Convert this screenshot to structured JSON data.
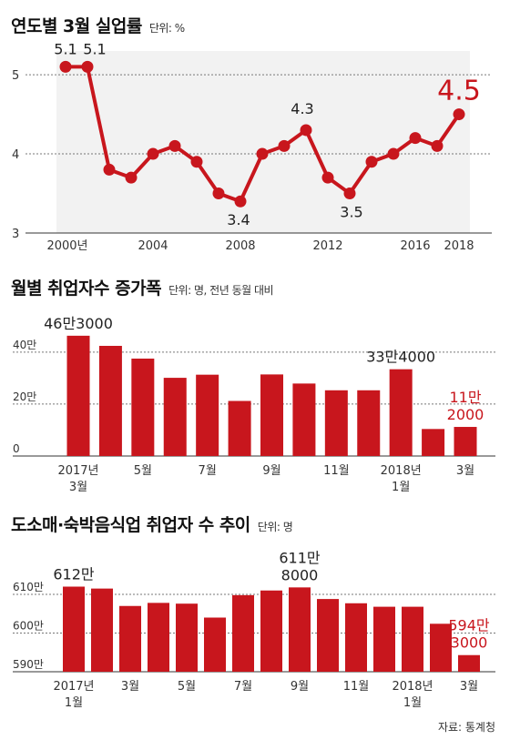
{
  "chart_data": [
    {
      "type": "line",
      "title": "연도별 3월 실업률",
      "unit": "단위: %",
      "x_tick_labels": [
        "2000년",
        "2004",
        "2008",
        "2012",
        "2016",
        "2018"
      ],
      "x": [
        2000,
        2001,
        2002,
        2003,
        2004,
        2005,
        2006,
        2007,
        2008,
        2009,
        2010,
        2011,
        2012,
        2013,
        2014,
        2015,
        2016,
        2017,
        2018
      ],
      "values": [
        5.1,
        5.1,
        3.8,
        3.7,
        4.0,
        4.1,
        3.9,
        3.5,
        3.4,
        4.0,
        4.1,
        4.3,
        3.7,
        3.5,
        3.9,
        4.0,
        4.2,
        4.1,
        4.5
      ],
      "data_labels": [
        {
          "x": 2000,
          "text": "5.1"
        },
        {
          "x": 2001,
          "text": "5.1"
        },
        {
          "x": 2008,
          "text": "3.4"
        },
        {
          "x": 2011,
          "text": "4.3"
        },
        {
          "x": 2013,
          "text": "3.5"
        },
        {
          "x": 2018,
          "text": "4.5",
          "highlight": true
        }
      ],
      "y_ticks": [
        "3",
        "4",
        "5"
      ],
      "ylim": [
        3,
        5.3
      ],
      "grid": true,
      "line_color": "#c8161d",
      "highlight_color": "#c8161d"
    },
    {
      "type": "bar",
      "title": "월별 취업자수 증가폭",
      "unit": "단위: 명, 전년 동월 대비",
      "categories": [
        "2017년 3월",
        "4월",
        "5월",
        "6월",
        "7월",
        "8월",
        "9월",
        "10월",
        "11월",
        "12월",
        "2018년 1월",
        "2월",
        "3월"
      ],
      "values": [
        463000,
        424000,
        375000,
        301000,
        313000,
        212000,
        314000,
        279000,
        253000,
        253000,
        334000,
        104000,
        112000
      ],
      "x_tick_labels": [
        {
          "index": 0,
          "lines": [
            "2017년",
            "3월"
          ]
        },
        {
          "index": 2,
          "lines": [
            "5월"
          ]
        },
        {
          "index": 4,
          "lines": [
            "7월"
          ]
        },
        {
          "index": 6,
          "lines": [
            "9월"
          ]
        },
        {
          "index": 8,
          "lines": [
            "11월"
          ]
        },
        {
          "index": 10,
          "lines": [
            "2018년",
            "1월"
          ]
        },
        {
          "index": 12,
          "lines": [
            "3월"
          ]
        }
      ],
      "data_labels": [
        {
          "index": 0,
          "lines": [
            "46만3000"
          ]
        },
        {
          "index": 10,
          "lines": [
            "33만4000"
          ]
        },
        {
          "index": 12,
          "lines": [
            "11만",
            "2000"
          ],
          "highlight": true
        }
      ],
      "y_ticks": [
        {
          "value": 0,
          "label": "0"
        },
        {
          "value": 200000,
          "label": "20만"
        },
        {
          "value": 400000,
          "label": "40만"
        }
      ],
      "ylim": [
        0,
        480000
      ],
      "grid": true,
      "bar_color": "#c8161d",
      "highlight_color": "#c8161d"
    },
    {
      "type": "bar",
      "title": "도소매·숙박음식업 취업자 수 추이",
      "unit": "단위: 명",
      "categories": [
        "2017년 1월",
        "2월",
        "3월",
        "4월",
        "5월",
        "6월",
        "7월",
        "8월",
        "9월",
        "10월",
        "11월",
        "12월",
        "2018년 1월",
        "2월",
        "3월"
      ],
      "values": [
        6120000,
        6115000,
        6070000,
        6078000,
        6076000,
        6040000,
        6098000,
        6110000,
        6118000,
        6088000,
        6077000,
        6068000,
        6068000,
        6024000,
        5943000
      ],
      "x_tick_labels": [
        {
          "index": 0,
          "lines": [
            "2017년",
            "1월"
          ]
        },
        {
          "index": 2,
          "lines": [
            "3월"
          ]
        },
        {
          "index": 4,
          "lines": [
            "5월"
          ]
        },
        {
          "index": 6,
          "lines": [
            "7월"
          ]
        },
        {
          "index": 8,
          "lines": [
            "9월"
          ]
        },
        {
          "index": 10,
          "lines": [
            "11월"
          ]
        },
        {
          "index": 12,
          "lines": [
            "2018년",
            "1월"
          ]
        },
        {
          "index": 14,
          "lines": [
            "3월"
          ]
        }
      ],
      "data_labels": [
        {
          "index": 0,
          "lines": [
            "612만"
          ]
        },
        {
          "index": 8,
          "lines": [
            "611만",
            "8000"
          ]
        },
        {
          "index": 14,
          "lines": [
            "594만",
            "3000"
          ],
          "highlight": true
        }
      ],
      "y_ticks": [
        {
          "value": 5900000,
          "label": "590만"
        },
        {
          "value": 6000000,
          "label": "600만"
        },
        {
          "value": 6100000,
          "label": "610만"
        }
      ],
      "ylim": [
        5900000,
        6140000
      ],
      "grid": true,
      "bar_color": "#c8161d",
      "highlight_color": "#c8161d"
    }
  ],
  "source": "자료: 통계청"
}
